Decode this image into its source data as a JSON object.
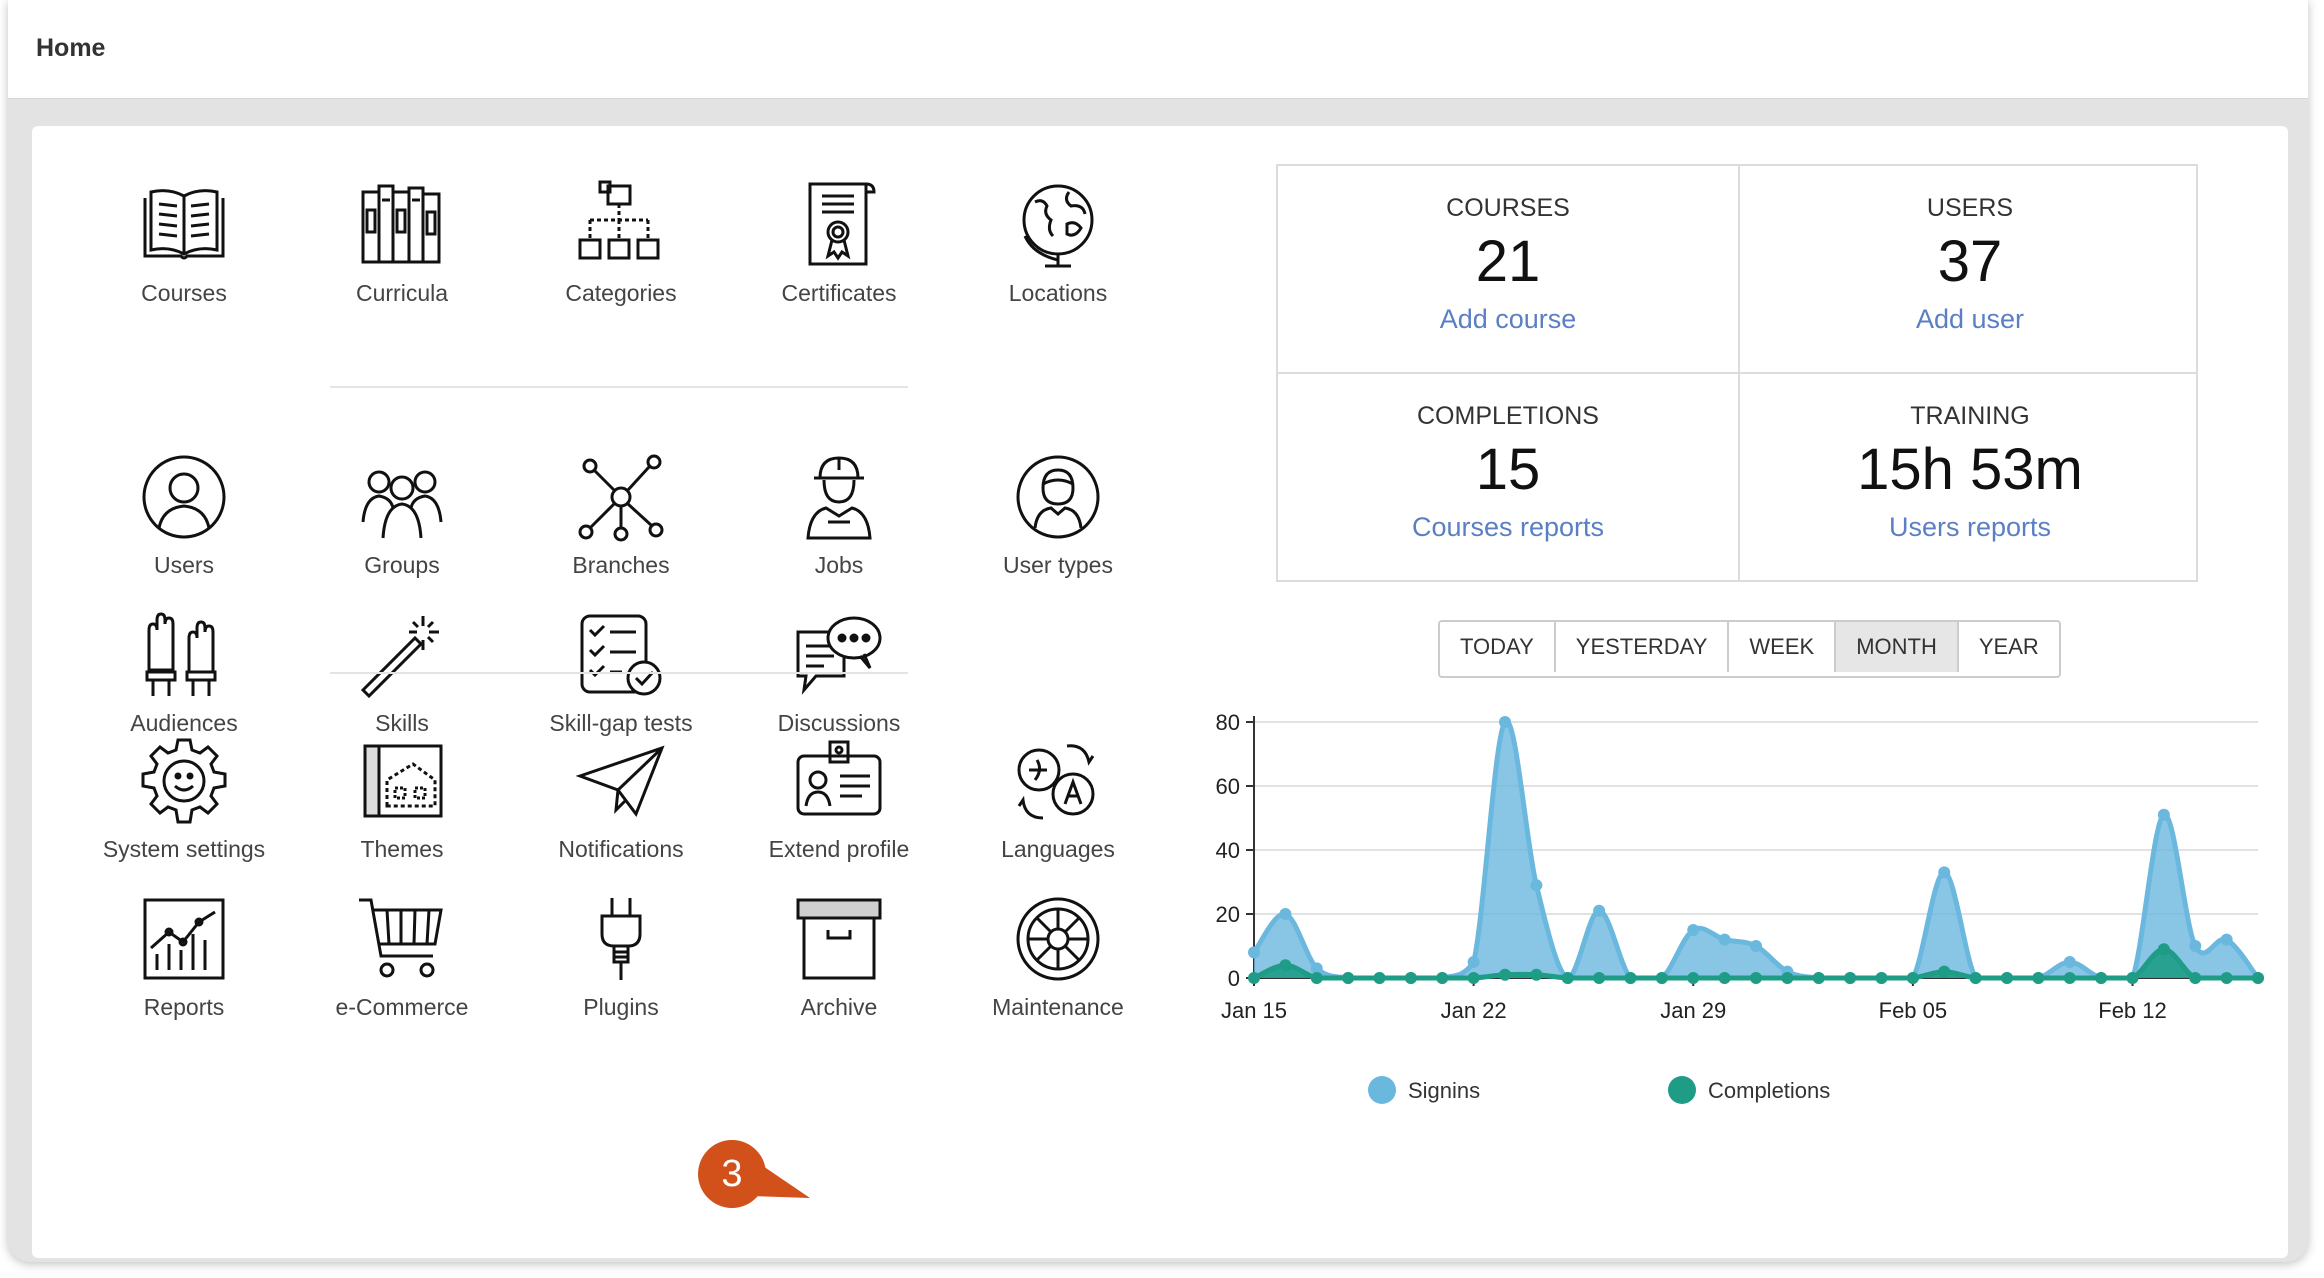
{
  "header": {
    "title": "Home"
  },
  "groups": [
    {
      "items": [
        {
          "label": "Courses",
          "icon": "book-icon"
        },
        {
          "label": "Curricula",
          "icon": "books-icon"
        },
        {
          "label": "Categories",
          "icon": "categories-icon"
        },
        {
          "label": "Certificates",
          "icon": "certificate-icon"
        },
        {
          "label": "Locations",
          "icon": "globe-icon"
        }
      ]
    },
    {
      "items": [
        {
          "label": "Users",
          "icon": "user-icon"
        },
        {
          "label": "Groups",
          "icon": "group-icon"
        },
        {
          "label": "Branches",
          "icon": "branches-icon"
        },
        {
          "label": "Jobs",
          "icon": "worker-icon"
        },
        {
          "label": "User types",
          "icon": "user-type-icon"
        },
        {
          "label": "Audiences",
          "icon": "raised-hands-icon"
        },
        {
          "label": "Skills",
          "icon": "magic-wand-icon"
        },
        {
          "label": "Skill-gap tests",
          "icon": "checklist-icon"
        },
        {
          "label": "Discussions",
          "icon": "chat-bubbles-icon"
        }
      ]
    },
    {
      "items": [
        {
          "label": "System settings",
          "icon": "gear-icon"
        },
        {
          "label": "Themes",
          "icon": "blueprint-icon"
        },
        {
          "label": "Notifications",
          "icon": "paper-plane-icon"
        },
        {
          "label": "Extend profile",
          "icon": "id-card-icon"
        },
        {
          "label": "Languages",
          "icon": "translate-icon"
        },
        {
          "label": "Reports",
          "icon": "report-chart-icon"
        },
        {
          "label": "e-Commerce",
          "icon": "cart-icon"
        },
        {
          "label": "Plugins",
          "icon": "plug-icon"
        },
        {
          "label": "Archive",
          "icon": "archive-box-icon"
        },
        {
          "label": "Maintenance",
          "icon": "maintenance-wheel-icon"
        }
      ]
    }
  ],
  "stats": {
    "courses": {
      "label": "COURSES",
      "value": "21",
      "link": "Add course"
    },
    "users": {
      "label": "USERS",
      "value": "37",
      "link": "Add user"
    },
    "completions": {
      "label": "COMPLETIONS",
      "value": "15",
      "link": "Courses reports"
    },
    "training": {
      "label": "TRAINING",
      "value": "15h 53m",
      "link": "Users reports"
    }
  },
  "period_buttons": [
    "TODAY",
    "YESTERDAY",
    "WEEK",
    "MONTH",
    "YEAR"
  ],
  "active_period": "MONTH",
  "annotation": {
    "number": "3",
    "color": "#d2501a"
  },
  "chart_data": {
    "type": "area",
    "x": [
      "Jan 15",
      "Jan 16",
      "Jan 17",
      "Jan 18",
      "Jan 19",
      "Jan 20",
      "Jan 21",
      "Jan 22",
      "Jan 23",
      "Jan 24",
      "Jan 25",
      "Jan 26",
      "Jan 27",
      "Jan 28",
      "Jan 29",
      "Jan 30",
      "Jan 31",
      "Feb 01",
      "Feb 02",
      "Feb 03",
      "Feb 04",
      "Feb 05",
      "Feb 06",
      "Feb 07",
      "Feb 08",
      "Feb 09",
      "Feb 10",
      "Feb 11",
      "Feb 12",
      "Feb 13",
      "Feb 14",
      "Feb 15",
      "Feb 16"
    ],
    "xticks": [
      "Jan 15",
      "Jan 22",
      "Jan 29",
      "Feb 05",
      "Feb 12"
    ],
    "ylim": [
      0,
      80
    ],
    "yticks": [
      0,
      20,
      40,
      60,
      80
    ],
    "series": [
      {
        "name": "Signins",
        "color": "#6bb8df",
        "values": [
          8,
          20,
          3,
          0,
          0,
          0,
          0,
          5,
          80,
          29,
          0,
          21,
          0,
          0,
          15,
          12,
          10,
          2,
          0,
          0,
          0,
          0,
          33,
          0,
          0,
          0,
          5,
          0,
          0,
          51,
          10,
          12,
          0
        ]
      },
      {
        "name": "Completions",
        "color": "#1e9c86",
        "values": [
          0,
          4,
          0,
          0,
          0,
          0,
          0,
          0,
          1,
          1,
          0,
          0,
          0,
          0,
          0,
          0,
          0,
          0,
          0,
          0,
          0,
          0,
          2,
          0,
          0,
          0,
          0,
          0,
          0,
          9,
          0,
          0,
          0
        ]
      }
    ],
    "grid": true,
    "legend": "bottom"
  }
}
